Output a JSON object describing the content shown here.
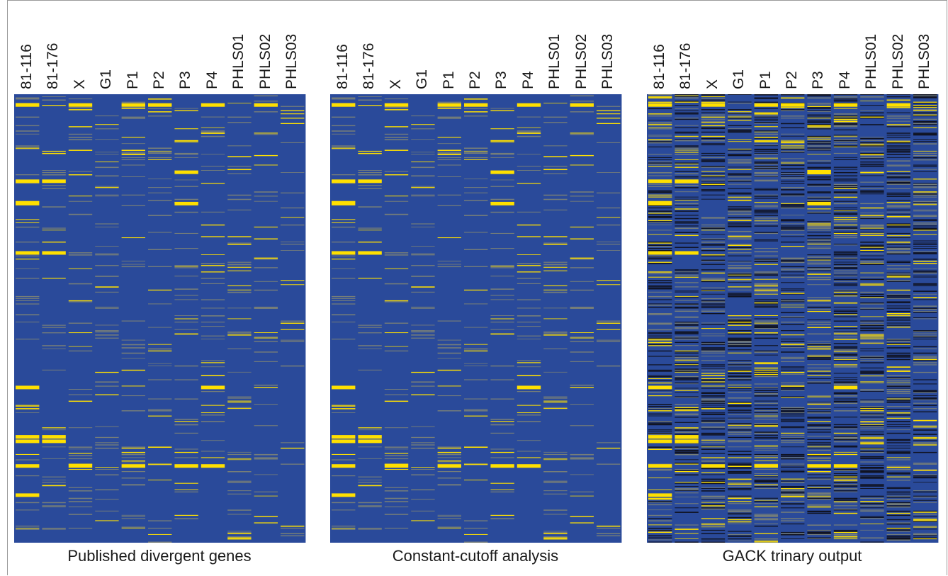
{
  "chart_data": [
    {
      "type": "heatmap",
      "caption": "Published divergent genes",
      "columns": [
        "81-116",
        "81-176",
        "X",
        "G1",
        "P1",
        "P2",
        "P3",
        "P4",
        "PHLS01",
        "PHLS02",
        "PHLS03"
      ],
      "colors": {
        "absent": "#2a4a9a",
        "divergent": "#ffe000",
        "uncertain": "#8f8f6e",
        "present_dark": "#101322"
      },
      "values_encoding": "0 = conserved (blue), 1 = divergent (yellow), 0.5 = intermediate (grey-olive)",
      "highlight_bands": [
        {
          "row_fraction": 0.02,
          "columns": [
            "81-116",
            "X",
            "P1",
            "P2",
            "P4",
            "PHLS02"
          ]
        },
        {
          "row_fraction": 0.19,
          "columns": [
            "81-116",
            "81-176"
          ]
        },
        {
          "row_fraction": 0.17,
          "columns": [
            "P3"
          ]
        },
        {
          "row_fraction": 0.24,
          "columns": [
            "81-116",
            "P3"
          ]
        },
        {
          "row_fraction": 0.35,
          "columns": [
            "81-116",
            "81-176"
          ]
        },
        {
          "row_fraction": 0.65,
          "columns": [
            "81-116",
            "P4"
          ]
        },
        {
          "row_fraction": 0.76,
          "columns": [
            "81-116",
            "81-176"
          ]
        },
        {
          "row_fraction": 0.77,
          "columns": [
            "81-116",
            "81-176"
          ]
        },
        {
          "row_fraction": 0.825,
          "columns": [
            "81-116",
            "X",
            "P1",
            "P3",
            "P4"
          ]
        },
        {
          "row_fraction": 0.89,
          "columns": [
            "81-116"
          ]
        }
      ]
    },
    {
      "type": "heatmap",
      "caption": "Constant-cutoff analysis",
      "columns": [
        "81-116",
        "81-176",
        "X",
        "G1",
        "P1",
        "P2",
        "P3",
        "P4",
        "PHLS01",
        "PHLS02",
        "PHLS03"
      ],
      "colors": {
        "absent": "#2a4a9a",
        "divergent": "#ffe000",
        "uncertain": "#8f8f6e",
        "present_dark": "#101322"
      }
    },
    {
      "type": "heatmap",
      "caption": "GACK trinary output",
      "columns": [
        "81-116",
        "81-176",
        "X",
        "G1",
        "P1",
        "P2",
        "P3",
        "P4",
        "PHLS01",
        "PHLS02",
        "PHLS03"
      ],
      "colors": {
        "absent": "#2a4a9a",
        "divergent": "#ffe000",
        "uncertain": "#8f8f6e",
        "present_dark": "#101322"
      }
    }
  ]
}
